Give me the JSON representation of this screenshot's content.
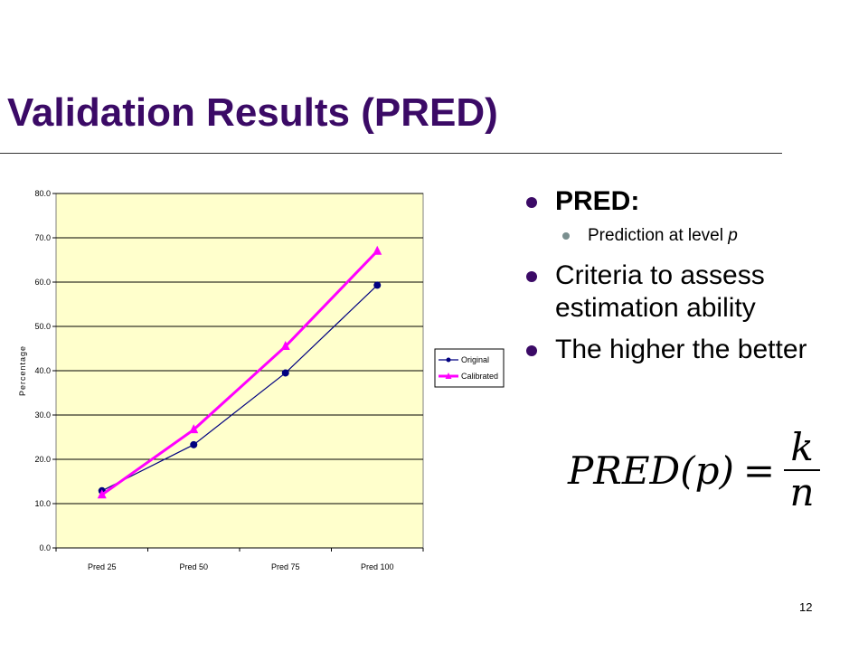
{
  "slide": {
    "title": "Validation Results (PRED)",
    "page_number": "12"
  },
  "bullets": {
    "b1": "PRED:",
    "b1_sub": "Prediction at level ",
    "b1_sub_var": "p",
    "b2_line1": "Criteria to assess",
    "b2_line2": "estimation ability",
    "b3": "The higher the better"
  },
  "formula": {
    "lhs": "PRED(p)",
    "eq": "=",
    "numerator": "k",
    "denominator": "n"
  },
  "chart_data": {
    "type": "line",
    "categories": [
      "Pred 25",
      "Pred 50",
      "Pred 75",
      "Pred 100"
    ],
    "series": [
      {
        "name": "Original",
        "values": [
          12.9,
          23.3,
          39.5,
          59.3
        ],
        "color": "#000080",
        "marker": "circle"
      },
      {
        "name": "Calibrated",
        "values": [
          12.0,
          26.7,
          45.5,
          67.0
        ],
        "color": "#ff00ff",
        "marker": "triangle"
      }
    ],
    "ylabel": "Percentage",
    "xlabel": "",
    "ylim": [
      0,
      80
    ],
    "yticks": [
      "0.0",
      "10.0",
      "20.0",
      "30.0",
      "40.0",
      "50.0",
      "60.0",
      "70.0",
      "80.0"
    ],
    "plot_background": "#ffffcc",
    "grid": true,
    "legend_position": "right"
  }
}
